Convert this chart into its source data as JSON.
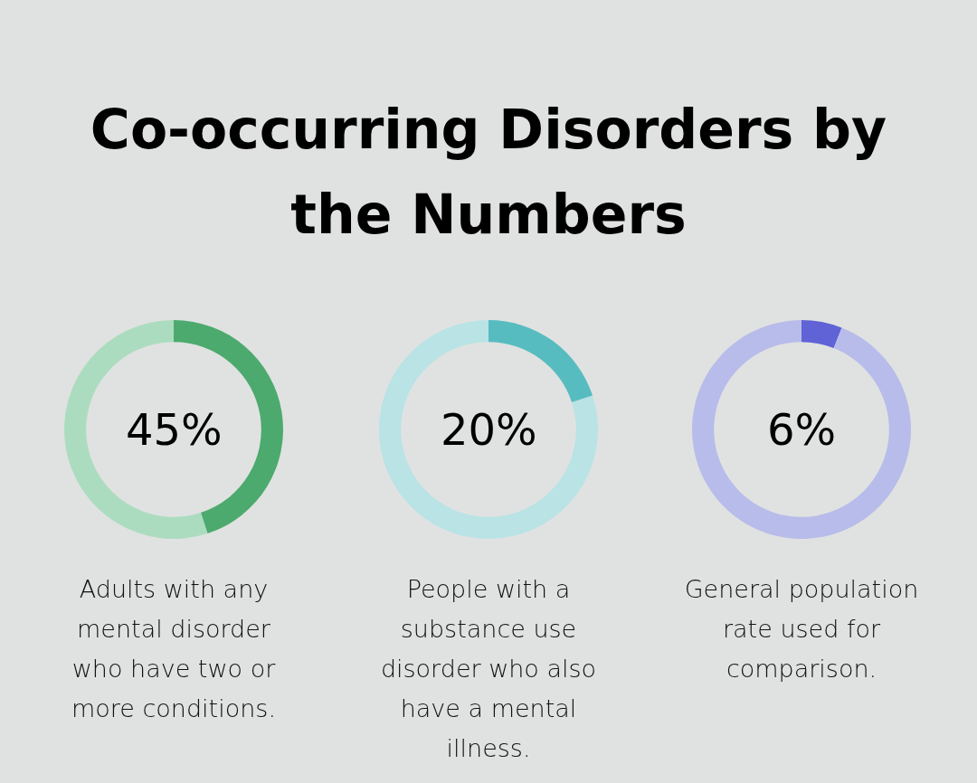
{
  "chart_data": [
    {
      "type": "other",
      "title": "Co-occurring Disorders by the Numbers"
    },
    {
      "type": "donut",
      "categories": [
        null,
        null
      ],
      "values": [
        45,
        55
      ],
      "colors": [
        "#4caa6e",
        "#acdcbf"
      ],
      "annotations": [
        "45%",
        "Adults with any mental disorder who have two or more conditions."
      ]
    },
    {
      "type": "donut",
      "categories": [
        null,
        null
      ],
      "values": [
        20,
        80
      ],
      "colors": [
        "#57bcc0",
        "#b9e3e5"
      ],
      "annotations": [
        "20%",
        "People with a substance use disorder who also have a mental illness."
      ]
    },
    {
      "type": "donut",
      "categories": [
        null,
        null
      ],
      "values": [
        6,
        94
      ],
      "colors": [
        "#5f63d6",
        "#b8bcea"
      ],
      "annotations": [
        "6%",
        "General population rate used for comparison."
      ]
    }
  ]
}
